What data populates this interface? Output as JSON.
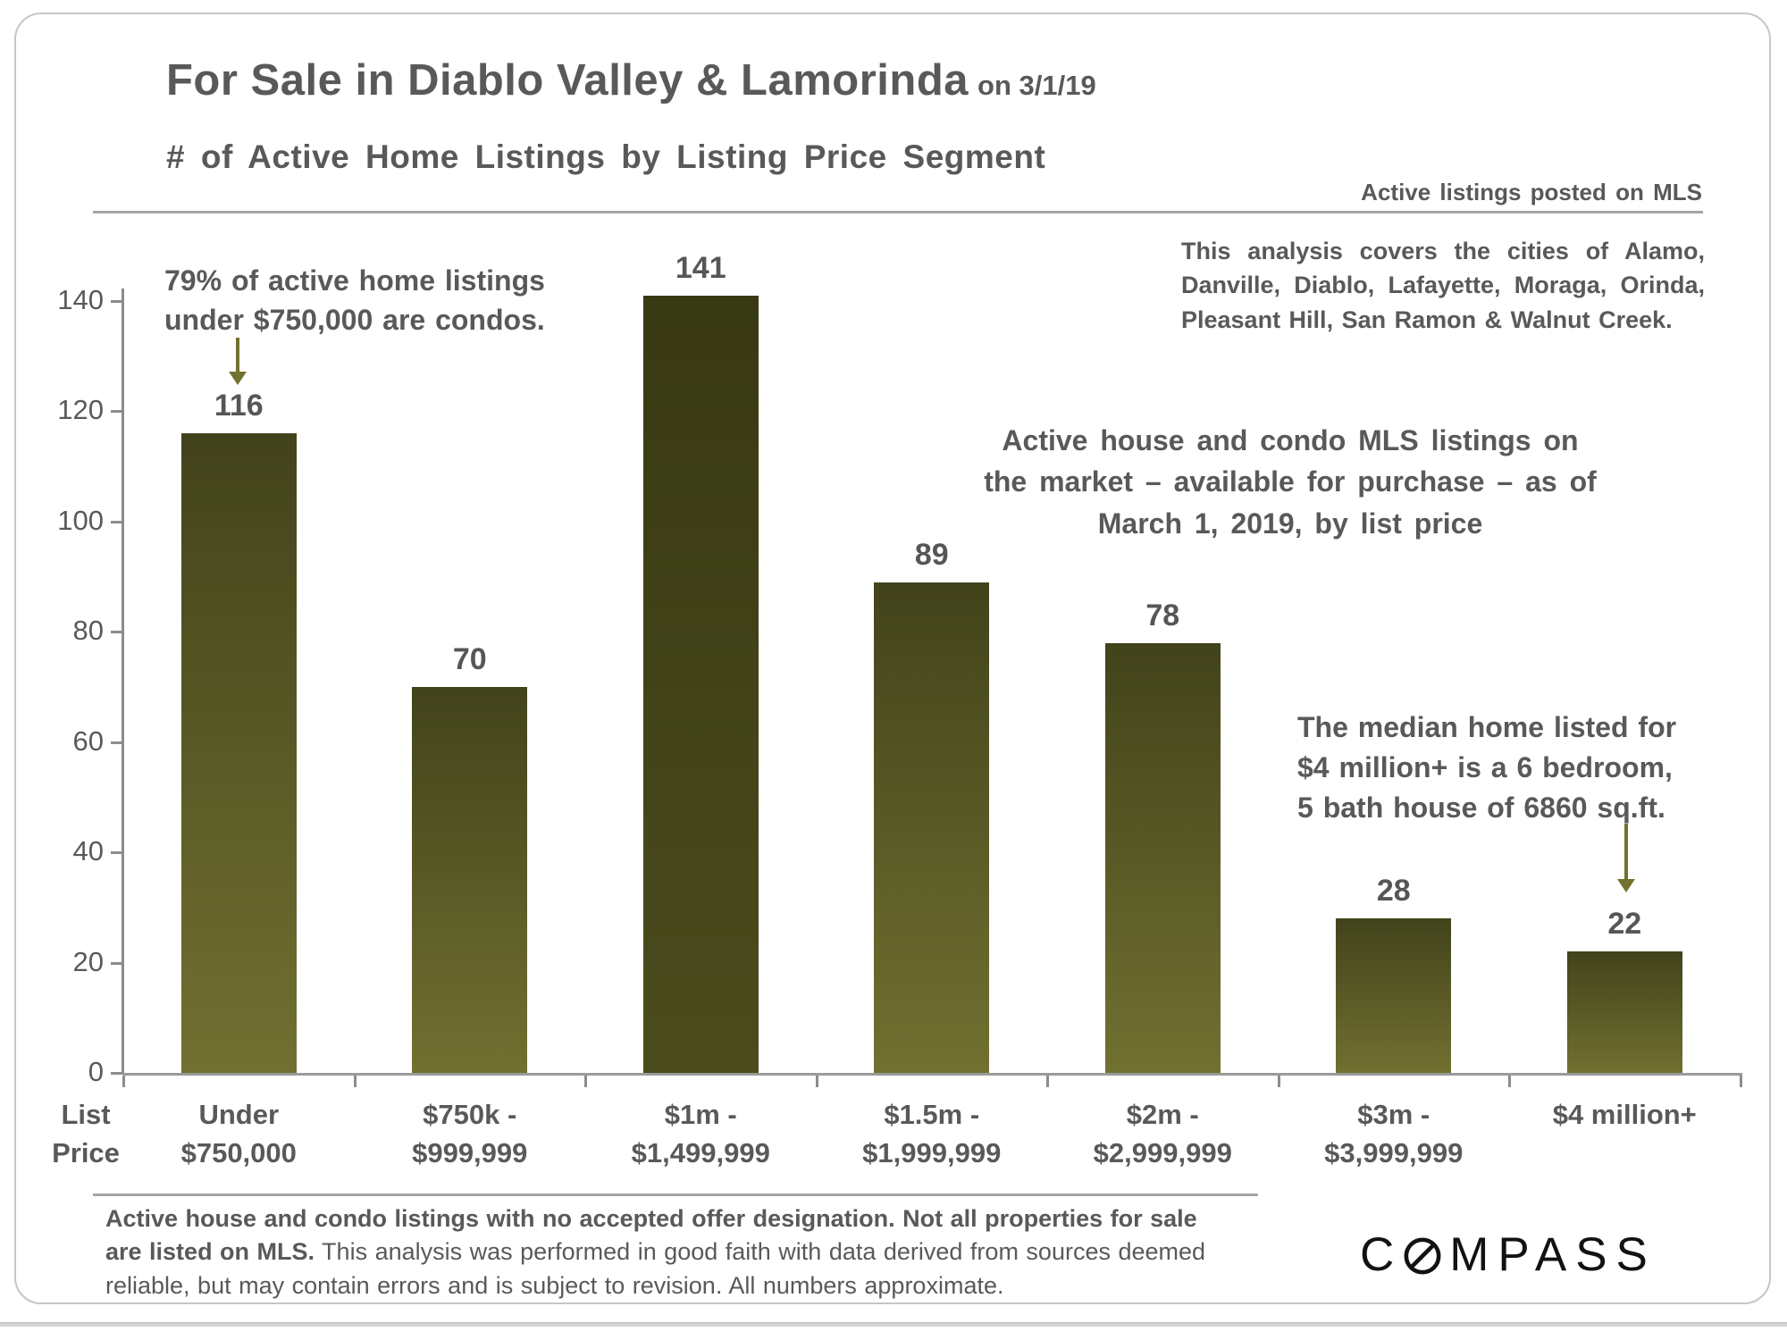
{
  "title": {
    "main": "For Sale in Diablo Valley & Lamorinda",
    "date_suffix": "on 3/1/19",
    "subtitle": "# of Active Home Listings by Listing Price Segment"
  },
  "header_note": "Active listings posted on MLS",
  "coverage_note": "This analysis covers the cities of Alamo, Danville, Diablo, Lafayette, Moraga, Orinda, Pleasant Hill, San Ramon & Walnut Creek.",
  "annotations": {
    "condos": [
      "79% of active home listings",
      "under $750,000 are condos."
    ],
    "listings_desc": [
      "Active house and condo MLS listings on",
      "the market – available for purchase – as of",
      "March 1, 2019, by list price"
    ],
    "median_home": [
      "The median home listed for",
      "$4 million+ is a 6 bedroom,",
      "5 bath house of 6860 sq.ft."
    ]
  },
  "chart_data": {
    "type": "bar",
    "categories": [
      [
        "Under",
        "$750,000"
      ],
      [
        "$750k -",
        "$999,999"
      ],
      [
        "$1m -",
        "$1,499,999"
      ],
      [
        "$1.5m -",
        "$1,999,999"
      ],
      [
        "$2m -",
        "$2,999,999"
      ],
      [
        "$3m -",
        "$3,999,999"
      ],
      [
        "$4 million+"
      ]
    ],
    "values": [
      116,
      70,
      141,
      89,
      78,
      28,
      22
    ],
    "highlighted_index": 2,
    "title": "# of Active Home Listings by Listing Price Segment",
    "xlabel": "List Price",
    "xlabel_lines": [
      "List",
      "Price"
    ],
    "ylabel": "",
    "ylim": [
      0,
      140
    ],
    "yticks": [
      0,
      20,
      40,
      60,
      80,
      100,
      120,
      140
    ],
    "grid": "off",
    "legend": "none",
    "bar_color_top": "#42431b",
    "bar_color_bottom": "#717031",
    "highlight_color_top": "#383913",
    "highlight_color_bottom": "#4b4c1d",
    "axis_color": "#8c8c8c"
  },
  "footer": {
    "bold_text": "Active house and condo listings with no accepted offer designation. Not all properties for sale are listed on MLS.",
    "regular_text": " This analysis was performed in good faith with data derived from sources deemed reliable, but may contain errors and is subject to revision.  All numbers approximate."
  },
  "logo": {
    "left": "C",
    "right": "MPASS"
  },
  "colors": {
    "text_grey": "#595959",
    "arrow_olive": "#72722e",
    "rule_grey": "#a6a6a6"
  }
}
